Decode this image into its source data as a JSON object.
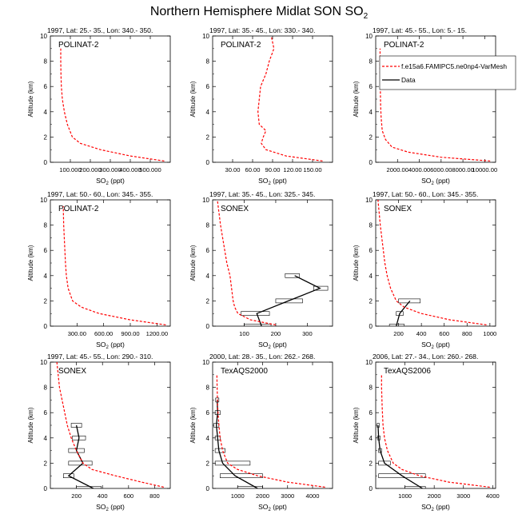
{
  "figure": {
    "title": "Northern Hemisphere Midlat SON SO",
    "title_subscript": "2"
  },
  "legend": {
    "model_label": "f.e15a6.FAMIPC5.ne0np4-VarMesh",
    "data_label": "Data",
    "model_color": "#ff0000",
    "data_color": "#000000"
  },
  "axis_text": {
    "ylabel": "Altitude (km)",
    "xlabel_prefix": "SO",
    "xlabel_sub": "2",
    "xlabel_suffix": " (ppt)"
  },
  "chart_data": [
    {
      "type": "line",
      "title": "1997, Lat: 25.- 35., Lon: 340.- 350.",
      "campaign": "POLINAT-2",
      "xlim": [
        0,
        600000
      ],
      "ylim": [
        0,
        10
      ],
      "yticks": [
        0,
        2,
        4,
        6,
        8,
        10
      ],
      "xticks": [
        100000,
        200000,
        300000,
        400000,
        500000
      ],
      "xticklabels": [
        "100.000",
        "200.000",
        "300.000",
        "400.000",
        "500.000"
      ],
      "model": {
        "x": [
          570000,
          400000,
          250000,
          150000,
          110000,
          85000,
          70000,
          60000,
          55000,
          53000,
          52000,
          52000
        ],
        "y": [
          0.1,
          0.5,
          1.0,
          1.5,
          2.0,
          3.0,
          4.0,
          5.0,
          6.0,
          7.0,
          8.0,
          9.0
        ]
      },
      "obs": null
    },
    {
      "type": "line",
      "title": "1997, Lat: 35.- 45., Lon: 330.- 340.",
      "campaign": "POLINAT-2",
      "xlim": [
        0,
        180
      ],
      "ylim": [
        0,
        10
      ],
      "yticks": [
        0,
        2,
        4,
        6,
        8,
        10
      ],
      "xticks": [
        30,
        60,
        90,
        120,
        150
      ],
      "xticklabels": [
        "30.00",
        "60.00",
        "90.00",
        "120.00",
        "150.00"
      ],
      "model": {
        "x": [
          165,
          110,
          80,
          73,
          76,
          80,
          70,
          68,
          70,
          72,
          80,
          85,
          92,
          90,
          88
        ],
        "y": [
          0.1,
          0.5,
          1.0,
          1.5,
          2.0,
          2.5,
          3.0,
          4.0,
          5.0,
          6.0,
          7.0,
          8.0,
          9.0,
          9.5,
          10.0
        ]
      },
      "obs": null
    },
    {
      "type": "line",
      "title": "1997, Lat: 45.- 55., Lon: 5.- 15.",
      "campaign": "POLINAT-2",
      "xlim": [
        0,
        11000
      ],
      "ylim": [
        0,
        10
      ],
      "yticks": [
        0,
        2,
        4,
        6,
        8,
        10
      ],
      "xticks": [
        2000,
        4000,
        6000,
        8000,
        10000
      ],
      "xticklabels": [
        "2000.00",
        "4000.00",
        "6000.00",
        "8000.00",
        "10000.00"
      ],
      "model": {
        "x": [
          10500,
          6000,
          3000,
          1500,
          900,
          600,
          500,
          450,
          420,
          400,
          400
        ],
        "y": [
          0.1,
          0.4,
          0.8,
          1.2,
          1.8,
          2.5,
          3.5,
          4.5,
          6.0,
          7.5,
          9.0
        ]
      },
      "obs": null
    },
    {
      "type": "line",
      "title": "1997, Lat: 50.- 60., Lon: 345.- 355.",
      "campaign": "POLINAT-2",
      "xlim": [
        0,
        1350
      ],
      "ylim": [
        0,
        10
      ],
      "yticks": [
        0,
        2,
        4,
        6,
        8,
        10
      ],
      "xticks": [
        300,
        600,
        900,
        1200
      ],
      "xticklabels": [
        "300.00",
        "600.00",
        "900.00",
        "1200.00"
      ],
      "model": {
        "x": [
          1300,
          900,
          550,
          350,
          250,
          200,
          180,
          170,
          160,
          150,
          145
        ],
        "y": [
          0.1,
          0.5,
          1.0,
          1.5,
          2.0,
          3.0,
          4.0,
          5.0,
          6.5,
          8.0,
          9.5
        ]
      },
      "obs": null
    },
    {
      "type": "line",
      "title": "1997, Lat: 35.- 45., Lon: 325.- 345.",
      "campaign": "SONEX",
      "xlim": [
        0,
        380
      ],
      "ylim": [
        0,
        10
      ],
      "yticks": [
        0,
        2,
        4,
        6,
        8,
        10
      ],
      "xticks": [
        100,
        200,
        300
      ],
      "xticklabels": [
        "100",
        "200",
        "300"
      ],
      "model": {
        "x": [
          200,
          120,
          80,
          70,
          65,
          60,
          55,
          45,
          35,
          25,
          15
        ],
        "y": [
          0.1,
          0.5,
          1.0,
          1.5,
          2.0,
          3.0,
          4.0,
          5.0,
          6.5,
          8.0,
          10.0
        ]
      },
      "obs": {
        "x": [
          155,
          140,
          240,
          340,
          260
        ],
        "y": [
          0.0,
          1.0,
          2.0,
          3.0,
          4.0
        ],
        "lo": [
          100,
          90,
          200,
          320,
          230
        ],
        "hi": [
          185,
          180,
          285,
          365,
          275
        ]
      }
    },
    {
      "type": "line",
      "title": "1997, Lat: 50.- 60., Lon: 345.- 355.",
      "campaign": "SONEX",
      "xlim": [
        0,
        1050
      ],
      "ylim": [
        0,
        10
      ],
      "yticks": [
        0,
        2,
        4,
        6,
        8,
        10
      ],
      "xticks": [
        200,
        400,
        600,
        800,
        1000
      ],
      "xticklabels": [
        "200",
        "400",
        "600",
        "800",
        "1000"
      ],
      "model": {
        "x": [
          970,
          650,
          400,
          250,
          180,
          130,
          100,
          80,
          60,
          40,
          20
        ],
        "y": [
          0.1,
          0.5,
          1.0,
          1.5,
          2.0,
          3.0,
          4.0,
          5.0,
          6.5,
          8.0,
          10.0
        ]
      },
      "obs": {
        "x": [
          180,
          210,
          300
        ],
        "y": [
          0.0,
          1.0,
          2.0
        ],
        "lo": [
          120,
          180,
          200
        ],
        "hi": [
          250,
          240,
          390
        ]
      }
    },
    {
      "type": "line",
      "title": "1997, Lat: 45.- 55., Lon: 290.- 310.",
      "campaign": "SONEX",
      "xlim": [
        0,
        920
      ],
      "ylim": [
        0,
        10
      ],
      "yticks": [
        0,
        2,
        4,
        6,
        8,
        10
      ],
      "xticks": [
        200,
        400,
        600,
        800
      ],
      "xticklabels": [
        "200",
        "400",
        "600",
        "800"
      ],
      "model": {
        "x": [
          870,
          700,
          500,
          320,
          250,
          200,
          160,
          130,
          100,
          70,
          50
        ],
        "y": [
          0.1,
          0.5,
          1.0,
          1.5,
          2.0,
          3.0,
          4.0,
          5.0,
          6.5,
          8.0,
          10.0
        ]
      },
      "obs": {
        "x": [
          330,
          140,
          250,
          200,
          220,
          200
        ],
        "y": [
          0.0,
          1.0,
          2.0,
          3.0,
          4.0,
          5.0
        ],
        "lo": [
          200,
          100,
          140,
          140,
          170,
          160
        ],
        "hi": [
          390,
          180,
          320,
          260,
          270,
          240
        ]
      }
    },
    {
      "type": "line",
      "title": "2000, Lat: 28.- 35., Lon: 262.- 268.",
      "campaign": "TexAQS2000",
      "xlim": [
        0,
        4800
      ],
      "ylim": [
        0,
        10
      ],
      "yticks": [
        0,
        2,
        4,
        6,
        8,
        10
      ],
      "xticks": [
        1000,
        2000,
        3000,
        4000
      ],
      "xticklabels": [
        "1000",
        "2000",
        "3000",
        "4000"
      ],
      "model": {
        "x": [
          4500,
          3000,
          1800,
          1000,
          600,
          400,
          300,
          250,
          200,
          180,
          170
        ],
        "y": [
          0.1,
          0.5,
          1.0,
          1.5,
          2.0,
          3.0,
          4.0,
          5.0,
          6.5,
          8.0,
          9.0
        ]
      },
      "obs": {
        "x": [
          1800,
          900,
          400,
          250,
          200,
          150,
          200,
          180
        ],
        "y": [
          0.0,
          1.0,
          2.0,
          3.0,
          4.0,
          5.0,
          6.0,
          7.0
        ],
        "lo": [
          1000,
          300,
          100,
          100,
          100,
          50,
          100,
          120
        ],
        "hi": [
          2000,
          2000,
          1500,
          500,
          300,
          250,
          300,
          250
        ]
      }
    },
    {
      "type": "line",
      "title": "2006, Lat: 27.- 34., Lon: 260.- 268.",
      "campaign": "TexAQS2006",
      "xlim": [
        0,
        4100
      ],
      "ylim": [
        0,
        10
      ],
      "yticks": [
        0,
        2,
        4,
        6,
        8,
        10
      ],
      "xticks": [
        1000,
        2000,
        3000,
        4000
      ],
      "xticklabels": [
        "1000",
        "2000",
        "3000",
        "4000"
      ],
      "model": {
        "x": [
          3900,
          2500,
          1500,
          900,
          600,
          400,
          300,
          250,
          220,
          200,
          200
        ],
        "y": [
          0.1,
          0.5,
          1.0,
          1.5,
          2.0,
          3.0,
          4.0,
          5.0,
          6.5,
          8.0,
          9.0
        ]
      },
      "obs": {
        "x": [
          1600,
          900,
          300,
          150,
          100,
          80
        ],
        "y": [
          0.0,
          1.0,
          2.0,
          3.0,
          4.0,
          5.0
        ],
        "lo": [
          1000,
          100,
          100,
          100,
          60,
          50
        ],
        "hi": [
          1700,
          1700,
          500,
          200,
          150,
          120
        ]
      }
    }
  ]
}
